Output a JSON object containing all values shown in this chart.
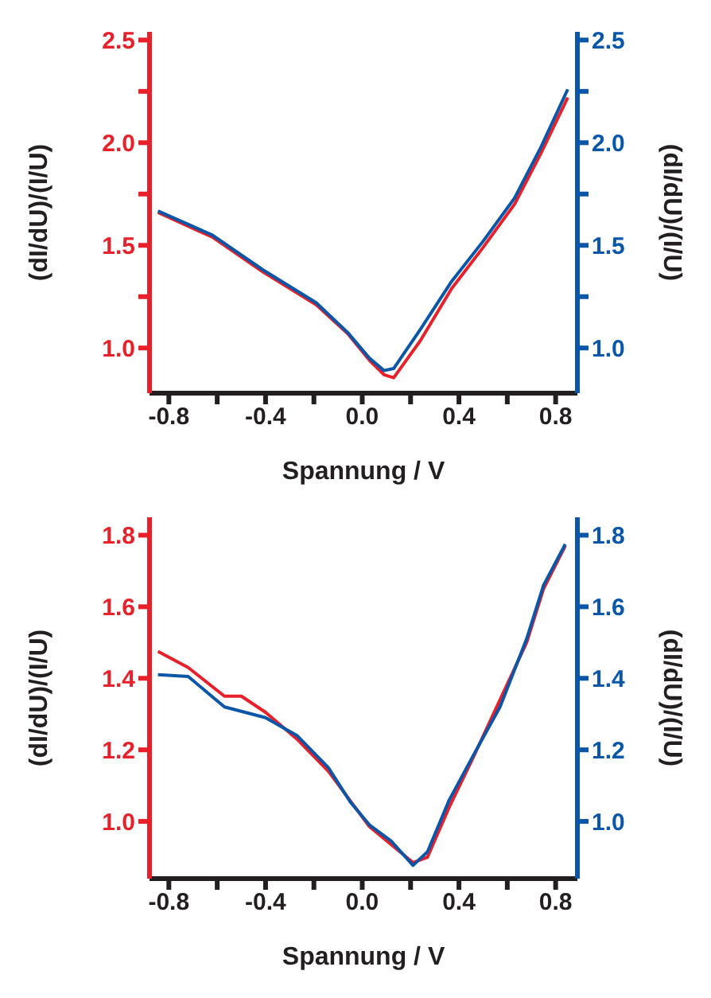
{
  "chart_data": [
    {
      "type": "line",
      "xlabel": "Spannung / V",
      "ylabel": "(dI/dU)/(I/U)",
      "y2label": "(dI/dU)/(I/U)",
      "xlim": [
        -0.88,
        0.89
      ],
      "xticks": [
        -0.8,
        {
          "value": -0.6,
          "label": null
        },
        -0.4,
        {
          "value": -0.2,
          "label": null
        },
        {
          "value": 0,
          "label": "0.0"
        },
        {
          "value": 0.2,
          "label": null
        },
        0.4,
        {
          "value": 0.6,
          "label": null
        },
        0.8
      ],
      "ylim": [
        0.78,
        2.54
      ],
      "yticks": [
        {
          "value": 1,
          "label": "1.0"
        },
        {
          "value": 1.25,
          "label": null
        },
        1.5,
        {
          "value": 1.75,
          "label": null
        },
        {
          "value": 2,
          "label": "2.0"
        },
        {
          "value": 2.25,
          "label": null
        },
        2.5
      ],
      "y2lim": [
        0.78,
        2.54
      ],
      "y2ticks": [
        {
          "value": 1,
          "label": "1.0"
        },
        {
          "value": 1.25,
          "label": null
        },
        1.5,
        {
          "value": 1.75,
          "label": null
        },
        {
          "value": 2,
          "label": "2.0"
        },
        {
          "value": 2.25,
          "label": null
        },
        2.5
      ],
      "series": [
        {
          "color": "#e8202a",
          "x": [
            -0.845,
            -0.62,
            -0.41,
            -0.19,
            -0.06,
            0.03,
            0.09,
            0.13,
            0.24,
            0.37,
            0.5,
            0.63,
            0.74,
            0.85
          ],
          "values": [
            1.66,
            1.54,
            1.37,
            1.21,
            1.07,
            0.94,
            0.87,
            0.855,
            1.035,
            1.29,
            1.49,
            1.7,
            1.95,
            2.22
          ]
        },
        {
          "color": "#0a56a8",
          "axis": "y2",
          "x": [
            -0.845,
            -0.62,
            -0.41,
            -0.19,
            -0.06,
            0.03,
            0.09,
            0.13,
            0.24,
            0.37,
            0.5,
            0.63,
            0.74,
            0.85
          ],
          "values": [
            1.667,
            1.55,
            1.38,
            1.22,
            1.075,
            0.95,
            0.89,
            0.9,
            1.09,
            1.325,
            1.52,
            1.73,
            1.98,
            2.26
          ]
        }
      ]
    },
    {
      "type": "line",
      "xlabel": "Spannung / V",
      "ylabel": "(dI/dU)/(I/U)",
      "y2label": "(dI/dU)/(I/U)",
      "xlim": [
        -0.88,
        0.89
      ],
      "xticks": [
        -0.8,
        {
          "value": -0.6,
          "label": null
        },
        -0.4,
        {
          "value": -0.2,
          "label": null
        },
        {
          "value": 0,
          "label": "0.0"
        },
        {
          "value": 0.2,
          "label": null
        },
        0.4,
        {
          "value": 0.6,
          "label": null
        },
        0.8
      ],
      "ylim": [
        0.84,
        1.85
      ],
      "yticks": [
        {
          "value": 1,
          "label": "1.0"
        },
        1.2,
        1.4,
        1.6,
        1.8
      ],
      "y2lim": [
        0.84,
        1.85
      ],
      "y2ticks": [
        {
          "value": 1,
          "label": "1.0"
        },
        1.2,
        1.4,
        1.6,
        1.8
      ],
      "series": [
        {
          "color": "#e8202a",
          "x": [
            -0.845,
            -0.72,
            -0.57,
            -0.5,
            -0.4,
            -0.27,
            -0.14,
            0.03,
            0.21,
            0.27,
            0.36,
            0.46,
            0.68,
            0.75,
            0.84
          ],
          "values": [
            1.475,
            1.43,
            1.35,
            1.35,
            1.305,
            1.23,
            1.14,
            0.985,
            0.885,
            0.9,
            1.04,
            1.18,
            1.5,
            1.65,
            1.77
          ]
        },
        {
          "color": "#0a56a8",
          "axis": "y2",
          "x": [
            -0.845,
            -0.72,
            -0.57,
            -0.4,
            -0.27,
            -0.14,
            -0.05,
            0.03,
            0.12,
            0.21,
            0.27,
            0.36,
            0.46,
            0.57,
            0.68,
            0.75,
            0.84
          ],
          "values": [
            1.41,
            1.405,
            1.32,
            1.29,
            1.24,
            1.15,
            1.055,
            0.99,
            0.945,
            0.877,
            0.915,
            1.06,
            1.185,
            1.32,
            1.51,
            1.66,
            1.775
          ]
        }
      ]
    }
  ]
}
